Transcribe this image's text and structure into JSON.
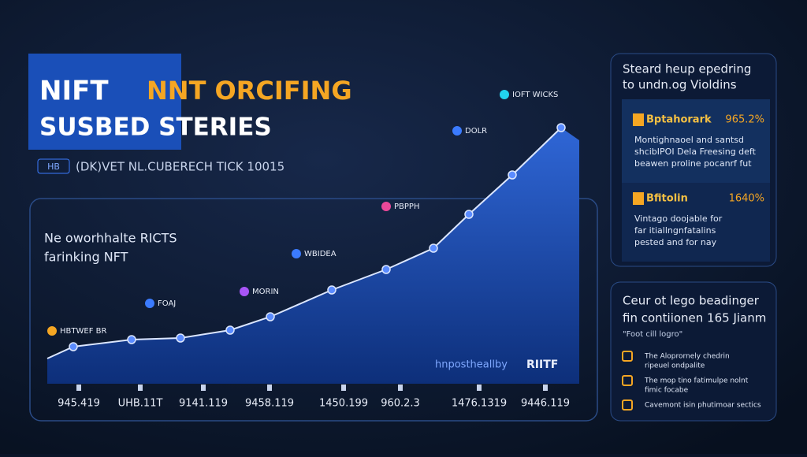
{
  "header": {
    "title_main": "NIFT",
    "title_accent": "NNT ORCIFING",
    "title_line2": "SUSBED STERIES",
    "badge": "HB",
    "subtitle": "(DK)VET NL.CUBERECH TICK 10015"
  },
  "chart_panel": {
    "label_line1": "Ne oworhhalte RICTS",
    "label_line2": "farinking NFT",
    "annotations": [
      "HBTWEF BR",
      "FOAJ",
      "MORIN",
      "WBIDEA",
      "PBPPH",
      "DOLR",
      "IOFT WICKS"
    ],
    "x_labels": [
      "945.419",
      "UHB.11T",
      "9141.119",
      "9458.119",
      "1450.199",
      "960.2.3",
      "1476.1319",
      "9446.119"
    ],
    "watermark": "hnpostheallby",
    "brand": "RIITF"
  },
  "side_top": {
    "heading_line1": "Steard heup epedring",
    "heading_line2": "to undn.og Violdins",
    "items": [
      {
        "name": "Bptahorark",
        "value": "965.2%",
        "lines": [
          "Montighnaoel and santsd",
          "shcibIPOI Dela Freesing deft",
          "beawen proline pocanrf fut"
        ]
      },
      {
        "name": "Bfitolin",
        "value": "1640%",
        "lines": [
          "Vintago doojable for",
          "far itiallngnfatalins",
          "pested and for nay"
        ]
      }
    ]
  },
  "side_bottom": {
    "heading_line1": "Ceur ot lego beadinger",
    "heading_line2": "fin contiionen 165 Jianm",
    "note": "\"Foot cill logro\"",
    "items": [
      [
        "The Aloprornely chedrin",
        "ripeuel ondpalite"
      ],
      [
        "The mop tino fatimulpe nolnt",
        "fimic focabe"
      ],
      [
        "Cavemont isin phutimoar sectics"
      ]
    ]
  }
}
